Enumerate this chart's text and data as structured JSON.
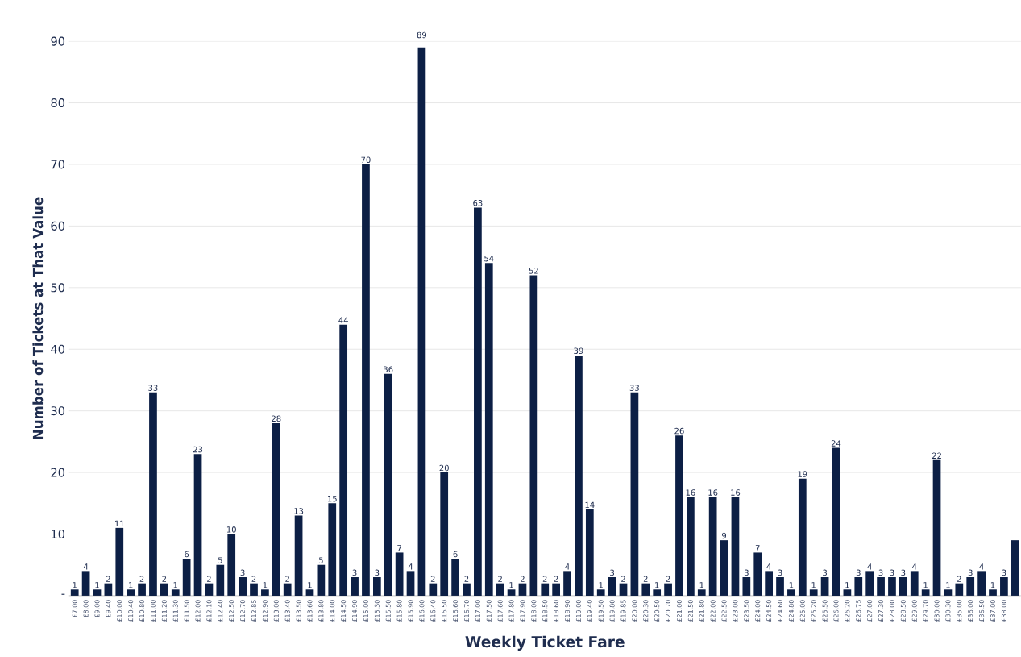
{
  "chart_data": {
    "type": "bar",
    "xlabel": "Weekly Ticket Fare",
    "ylabel": "Number of Tickets at That Value",
    "categories": [
      "£7.00",
      "£8.00",
      "£9.00",
      "£9.40",
      "£10.00",
      "£10.40",
      "£10.80",
      "£11.00",
      "£11.20",
      "£11.30",
      "£11.50",
      "£12.00",
      "£12.10",
      "£12.40",
      "£12.50",
      "£12.70",
      "£12.85",
      "£12.90",
      "£13.00",
      "£13.40",
      "£13.50",
      "£13.60",
      "£13.80",
      "£14.00",
      "£14.50",
      "£14.90",
      "£15.00",
      "£15.30",
      "£15.50",
      "£15.80",
      "£15.90",
      "£16.00",
      "£16.40",
      "£16.50",
      "£16.60",
      "£16.70",
      "£17.00",
      "£17.50",
      "£17.60",
      "£17.80",
      "£17.90",
      "£18.00",
      "£18.50",
      "£18.60",
      "£18.90",
      "£19.00",
      "£19.40",
      "£19.50",
      "£19.80",
      "£19.85",
      "£20.00",
      "£20.30",
      "£20.50",
      "£20.70",
      "£21.00",
      "£21.50",
      "£21.80",
      "£22.00",
      "£22.50",
      "£23.00",
      "£23.50",
      "£24.00",
      "£24.50",
      "£24.60",
      "£24.80",
      "£25.00",
      "£25.20",
      "£25.50",
      "£26.00",
      "£26.20",
      "£26.75",
      "£27.00",
      "£27.30",
      "£28.00",
      "£28.50",
      "£29.00",
      "£29.70",
      "£30.00",
      "£30.30",
      "£35.00",
      "£36.00",
      "£36.50",
      "£37.00",
      "£38.00",
      null
    ],
    "values": [
      1,
      4,
      1,
      2,
      11,
      1,
      2,
      33,
      2,
      1,
      6,
      23,
      2,
      5,
      10,
      3,
      2,
      1,
      28,
      2,
      13,
      1,
      5,
      15,
      44,
      3,
      70,
      3,
      36,
      7,
      4,
      89,
      2,
      20,
      6,
      2,
      63,
      54,
      2,
      1,
      2,
      52,
      2,
      2,
      4,
      39,
      14,
      1,
      3,
      2,
      33,
      2,
      1,
      2,
      26,
      16,
      1,
      16,
      9,
      16,
      3,
      7,
      4,
      3,
      1,
      19,
      1,
      3,
      24,
      1,
      3,
      4,
      3,
      3,
      3,
      4,
      1,
      22,
      1,
      2,
      3,
      4,
      1,
      3,
      9
    ],
    "value_labels": [
      "1",
      "4",
      "1",
      "2",
      "11",
      "1",
      "2",
      "33",
      "2",
      "1",
      "6",
      "23",
      "2",
      "5",
      "10",
      "3",
      "2",
      "1",
      "28",
      "2",
      "13",
      "1",
      "5",
      "15",
      "44",
      "3",
      "70",
      "3",
      "36",
      "7",
      "4",
      "89",
      "2",
      "20",
      "6",
      "2",
      "63",
      "54",
      "2",
      "1",
      "2",
      "52",
      "2",
      "2",
      "4",
      "39",
      "14",
      "1",
      "3",
      "2",
      "33",
      "2",
      "1",
      "2",
      "26",
      "16",
      "1",
      "16",
      "9",
      "16",
      "3",
      "7",
      "4",
      "3",
      "1",
      "19",
      "1",
      "3",
      "24",
      "1",
      "3",
      "4",
      "3",
      "3",
      "3",
      "4",
      "1",
      "22",
      "1",
      "2",
      "3",
      "4",
      "1",
      "3",
      null
    ],
    "color": "#0c1f45",
    "ylim": [
      0,
      90
    ],
    "yticks": [
      {
        "value": 0,
        "label": "-"
      },
      10,
      20,
      30,
      40,
      50,
      60,
      70,
      80,
      90
    ],
    "grid": "y"
  }
}
